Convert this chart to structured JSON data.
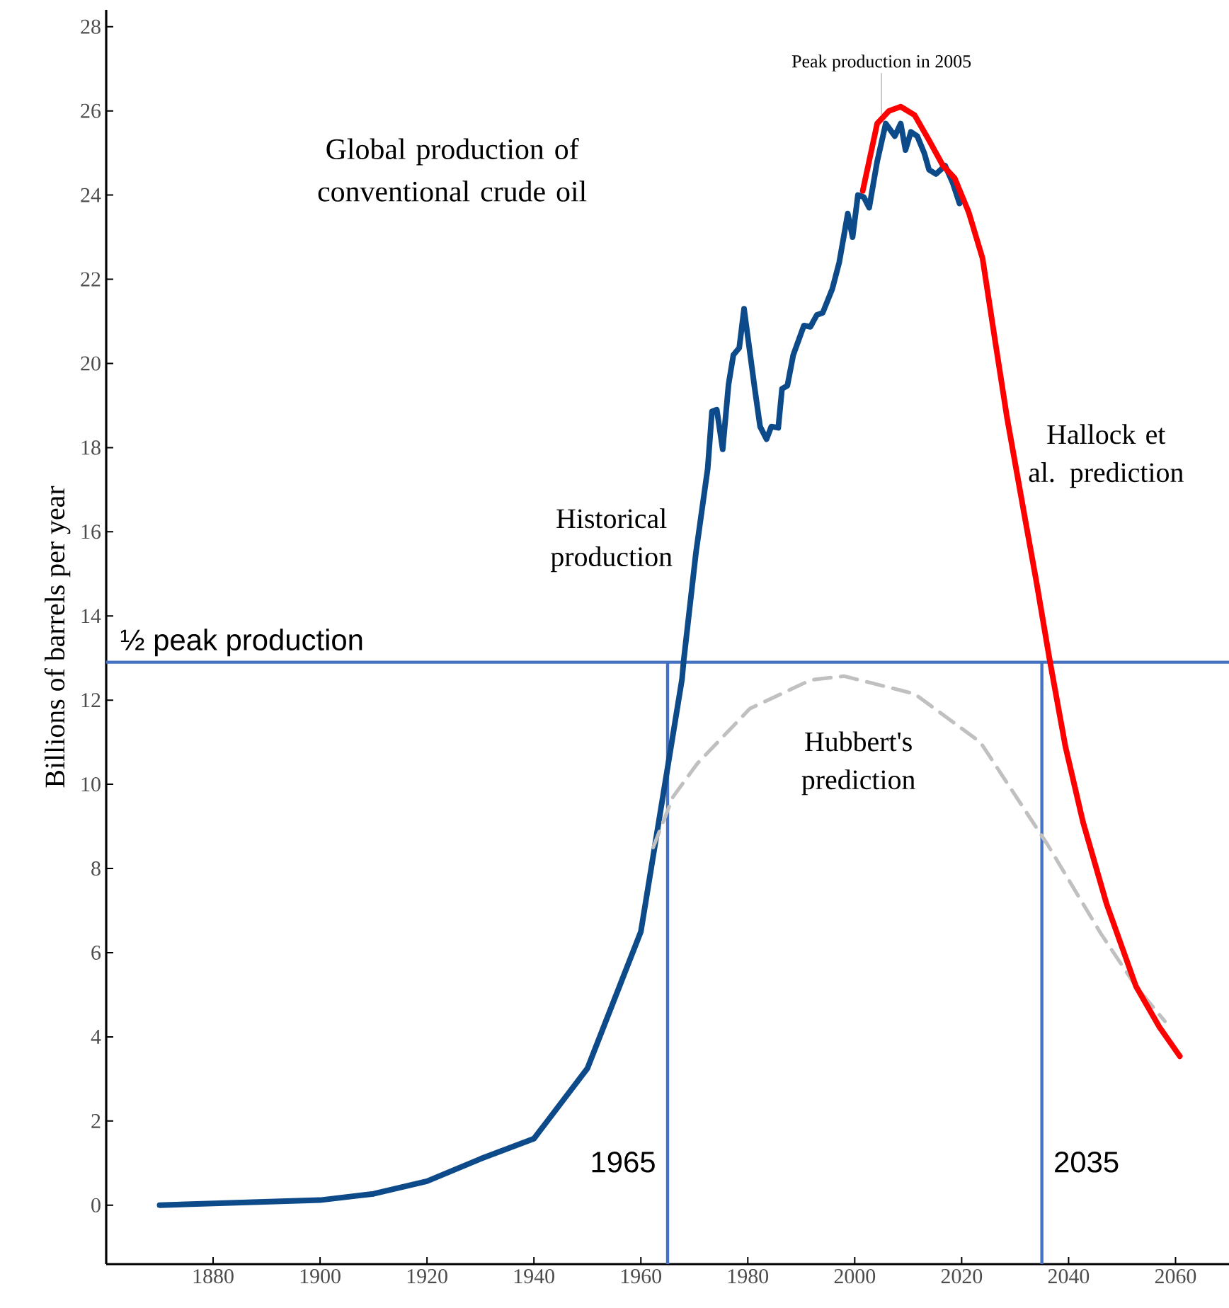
{
  "chart_data": {
    "type": "line",
    "title": "Global production of conventional crude oil",
    "ylabel": "Billions of barrels per year",
    "xlim": [
      1860,
      2070
    ],
    "ylim": [
      -1.4,
      28.4
    ],
    "xticks": [
      1880,
      1900,
      1920,
      1940,
      1960,
      1980,
      2000,
      2020,
      2040,
      2060
    ],
    "yticks": [
      0,
      2,
      4,
      6,
      8,
      10,
      12,
      14,
      16,
      18,
      20,
      22,
      24,
      26,
      28
    ],
    "series": [
      {
        "name": "Historical production",
        "color": "#0d4a8a",
        "line_style": "solid",
        "x": [
          1870,
          1900,
          1910,
          1920,
          1930,
          1940,
          1950,
          1960,
          1967.7,
          1968,
          1970.3,
          1972.5,
          1973.3,
          1974.2,
          1975.3,
          1976.4,
          1977.3,
          1978.4,
          1979.3,
          1981.3,
          1982.3,
          1983.5,
          1984.4,
          1985.7,
          1986.4,
          1987.4,
          1988.5,
          1990.5,
          1991.7,
          1992.9,
          1994,
          1995.8,
          1997.1,
          1998.7,
          1999.6,
          2000.6,
          2001.7,
          2002.7,
          2004.2,
          2005.8,
          2007.5,
          2008.6,
          2009.5,
          2010.5,
          2011.7,
          2013,
          2013.9,
          2015.2,
          2016.9,
          2018.3,
          2019.6
        ],
        "values": [
          0,
          0.12,
          0.27,
          0.57,
          1.1,
          1.58,
          3.25,
          6.5,
          12.5,
          12.93,
          15.5,
          17.5,
          18.86,
          18.9,
          17.96,
          19.5,
          20.2,
          20.37,
          21.3,
          19.4,
          18.5,
          18.2,
          18.5,
          18.47,
          19.4,
          19.47,
          20.2,
          20.9,
          20.87,
          21.15,
          21.2,
          21.77,
          22.4,
          23.56,
          23.0,
          24.0,
          23.95,
          23.7,
          24.8,
          25.7,
          25.4,
          25.7,
          25.07,
          25.5,
          25.4,
          25.0,
          24.6,
          24.5,
          24.7,
          24.3,
          23.8
        ]
      },
      {
        "name": "Hubbert's prediction",
        "color": "#c0c0c0",
        "line_style": "dashed",
        "x": [
          1962.3,
          1966,
          1970.6,
          1980.4,
          1991.8,
          1998,
          2011.2,
          2023.5,
          2036.1,
          2046,
          2052.6,
          2058
        ],
        "values": [
          8.5,
          9.7,
          10.5,
          11.8,
          12.48,
          12.57,
          12.15,
          11.0,
          8.56,
          6.46,
          5.2,
          4.37
        ]
      },
      {
        "name": "Hallock et al. prediction",
        "color": "#ff0000",
        "line_style": "solid",
        "x": [
          2001.5,
          2004.2,
          2006.4,
          2008.6,
          2011.2,
          2013.9,
          2016.5,
          2018.7,
          2021.3,
          2023.9,
          2026.3,
          2028.5,
          2031.8,
          2034,
          2036.4,
          2039.4,
          2042.7,
          2047.1,
          2052.6,
          2057,
          2060.8
        ],
        "values": [
          24.1,
          25.7,
          26.0,
          26.1,
          25.9,
          25.3,
          24.7,
          24.4,
          23.6,
          22.5,
          20.5,
          18.7,
          16.35,
          14.8,
          13.0,
          10.9,
          9.1,
          7.16,
          5.2,
          4.23,
          3.54
        ]
      }
    ],
    "ref_lines": [
      {
        "axis": "y",
        "value": 12.9,
        "label": "½ peak production",
        "color": "#4472c4"
      },
      {
        "axis": "x",
        "value": 1965,
        "label": "1965",
        "color": "#4472c4"
      },
      {
        "axis": "x",
        "value": 2035,
        "label": "2035",
        "color": "#4472c4"
      }
    ],
    "annotations": [
      {
        "text": "Peak production in 2005",
        "x": 2005,
        "y": 25.7
      }
    ]
  }
}
